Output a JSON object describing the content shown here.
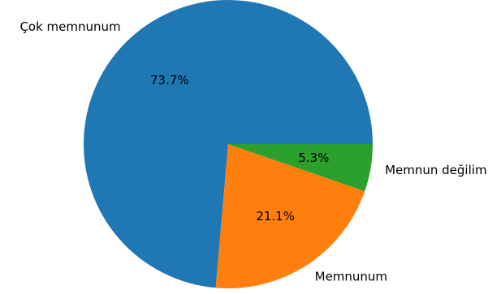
{
  "chart_data": {
    "type": "pie",
    "categories": [
      "Çok memnunum",
      "Memnunum",
      "Memnun değilim"
    ],
    "values": [
      73.7,
      21.1,
      5.3
    ],
    "value_labels": [
      "73.7%",
      "21.1%",
      "5.3%"
    ],
    "colors": [
      "#1f77b4",
      "#ff7f0e",
      "#2ca02c"
    ],
    "title": "",
    "legend": "none"
  }
}
